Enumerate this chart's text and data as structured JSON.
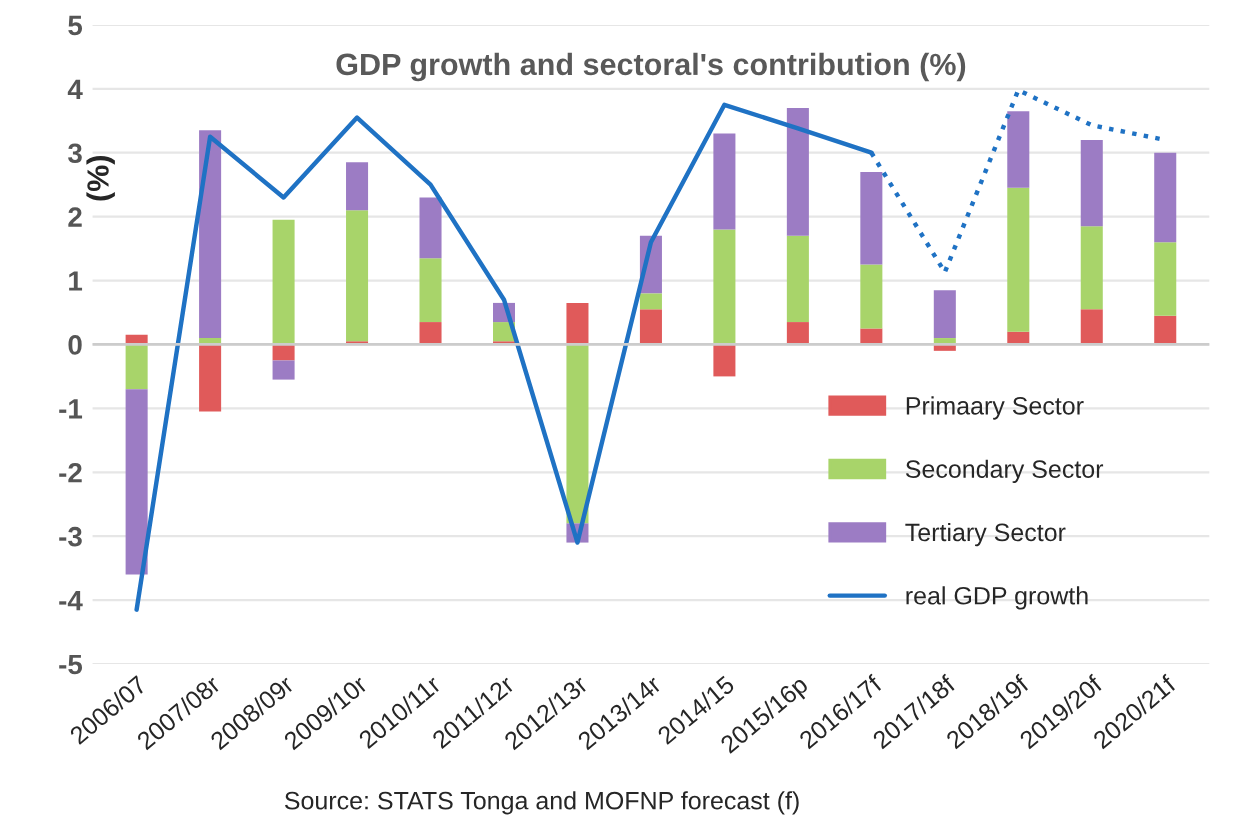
{
  "chart_data": {
    "type": "bar",
    "title": "GDP growth and sectoral's contribution (%)",
    "ylabel": "(%)",
    "categories": [
      "2006/07",
      "2007/08r",
      "2008/09r",
      "2009/10r",
      "2010/11r",
      "2011/12r",
      "2012/13r",
      "2013/14r",
      "2014/15",
      "2015/16p",
      "2016/17f",
      "2017/18f",
      "2018/19f",
      "2019/20f",
      "2020/21f"
    ],
    "stacked": true,
    "series": [
      {
        "name": "Primaary Sector",
        "color": "#e05a5a",
        "values": [
          0.15,
          -1.05,
          -0.25,
          0.05,
          0.35,
          0.05,
          0.65,
          0.55,
          -0.5,
          0.35,
          0.25,
          -0.1,
          0.2,
          0.55,
          0.45
        ]
      },
      {
        "name": "Secondary Sector",
        "color": "#a8d46a",
        "values": [
          -0.7,
          0.1,
          1.95,
          2.05,
          1.0,
          0.3,
          -2.8,
          0.25,
          1.8,
          1.35,
          1.0,
          0.1,
          2.25,
          1.3,
          1.15
        ]
      },
      {
        "name": "Tertiary Sector",
        "color": "#9c7cc4",
        "values": [
          -2.9,
          3.25,
          -0.3,
          0.75,
          0.95,
          0.3,
          -0.3,
          0.9,
          1.5,
          2.0,
          1.45,
          0.75,
          1.2,
          1.35,
          1.4
        ]
      },
      {
        "name": "real GDP growth",
        "type": "line",
        "color": "#1f72c4",
        "line_style": "solid",
        "values": [
          -4.15,
          3.25,
          2.3,
          3.55,
          2.5,
          0.7,
          -3.1,
          1.6,
          3.75,
          3.38,
          3.0,
          null,
          null,
          null,
          null
        ]
      },
      {
        "type": "line",
        "color": "#1f72c4",
        "line_style": "dotted",
        "values": [
          null,
          null,
          null,
          null,
          null,
          null,
          null,
          null,
          null,
          null,
          3.0,
          1.13,
          3.98,
          3.43,
          3.2
        ]
      }
    ],
    "ylim": [
      -5,
      5
    ],
    "yticks": [
      -5,
      -4,
      -3,
      -2,
      -1,
      0,
      1,
      2,
      3,
      4,
      5
    ],
    "grid": "y",
    "legend": "bottom right",
    "marker": "none",
    "annotations": [
      "Source: STATS Tonga and MOFNP forecast (f)"
    ]
  }
}
